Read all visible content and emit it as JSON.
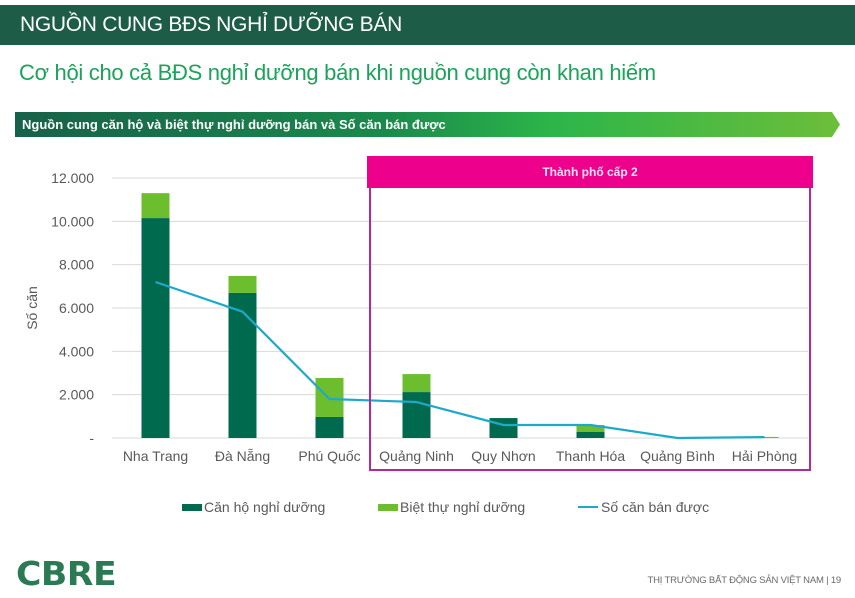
{
  "header": {
    "title": "NGUỒN CUNG BĐS NGHỈ DƯỠNG BÁN"
  },
  "subtitle": "Cơ hội cho cả BĐS nghỉ dưỡng bán khi nguồn cung còn khan hiếm",
  "banner": {
    "label": "Nguồn cung căn hộ và biệt thự nghỉ dưỡng bán và Số căn bán được"
  },
  "callout": {
    "label": "Thành phố cấp 2",
    "color": "#ec008c",
    "border_color": "#b52897"
  },
  "legend": {
    "items": [
      {
        "label": "Căn hộ nghỉ dưỡng",
        "color": "#006a4e",
        "type": "bar"
      },
      {
        "label": "Biệt thự nghỉ dưỡng",
        "color": "#6cbe2e",
        "type": "bar"
      },
      {
        "label": "Số căn bán được",
        "color": "#1fa9c9",
        "type": "line"
      }
    ]
  },
  "footer": {
    "logo": "CBRE",
    "text": "THỊ TRƯỜNG BẤT ĐỘNG SẢN VIỆT NAM | 19"
  },
  "chart_data": {
    "type": "bar",
    "stacked": true,
    "title": "Nguồn cung căn hộ và biệt thự nghỉ dưỡng bán và Số căn bán được",
    "xlabel": "",
    "ylabel": "Số căn",
    "ylim": [
      0,
      12000
    ],
    "yticks": [
      0,
      2000,
      4000,
      6000,
      8000,
      10000,
      12000
    ],
    "ytick_labels": [
      "-",
      "2.000",
      "4.000",
      "6.000",
      "8.000",
      "10.000",
      "12.000"
    ],
    "grid": true,
    "legend_position": "bottom",
    "categories": [
      "Nha Trang",
      "Đà Nẵng",
      "Phú Quốc",
      "Quảng Ninh",
      "Quy Nhơn",
      "Thanh Hóa",
      "Quảng Bình",
      "Hải Phòng"
    ],
    "series": [
      {
        "name": "Căn hộ nghỉ dưỡng",
        "type": "bar",
        "color": "#006a4e",
        "values": [
          10150,
          6700,
          970,
          2120,
          920,
          290,
          0,
          0
        ]
      },
      {
        "name": "Biệt thự nghỉ dưỡng",
        "type": "bar",
        "color": "#6cbe2e",
        "values": [
          1150,
          780,
          1800,
          830,
          0,
          310,
          0,
          50
        ]
      },
      {
        "name": "Số căn bán được",
        "type": "line",
        "color": "#1fa9c9",
        "values": [
          7200,
          5830,
          1800,
          1660,
          600,
          600,
          0,
          40
        ]
      }
    ],
    "annotations": [
      {
        "text": "Thành phố cấp 2",
        "spans": [
          "Quảng Ninh",
          "Hải Phòng"
        ]
      }
    ]
  }
}
